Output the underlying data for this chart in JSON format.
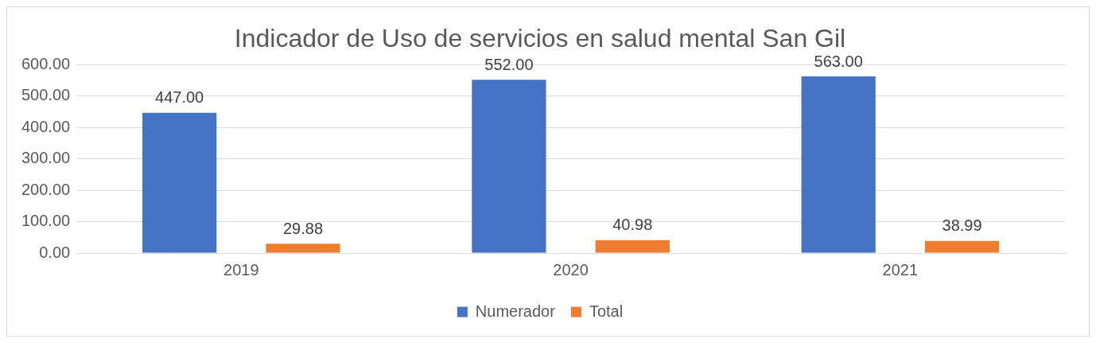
{
  "chart_data": {
    "type": "bar",
    "title": "Indicador de Uso de servicios en salud mental San Gil",
    "categories": [
      "2019",
      "2020",
      "2021"
    ],
    "series": [
      {
        "name": "Numerador",
        "color": "#4472c4",
        "values": [
          447,
          552,
          563
        ],
        "value_labels": [
          "447.00",
          "552.00",
          "563.00"
        ]
      },
      {
        "name": "Total",
        "color": "#ed7d31",
        "values": [
          29.88,
          40.98,
          38.99
        ],
        "value_labels": [
          "29.88",
          "40.98",
          "38.99"
        ]
      }
    ],
    "ylim": [
      0,
      600
    ],
    "yticks": [
      {
        "value": 0,
        "label": "0.00"
      },
      {
        "value": 100,
        "label": "100.00"
      },
      {
        "value": 200,
        "label": "200.00"
      },
      {
        "value": 300,
        "label": "300.00"
      },
      {
        "value": 400,
        "label": "400.00"
      },
      {
        "value": 500,
        "label": "500.00"
      },
      {
        "value": 600,
        "label": "600.00"
      }
    ],
    "grid": "y",
    "legend": "bottom"
  }
}
